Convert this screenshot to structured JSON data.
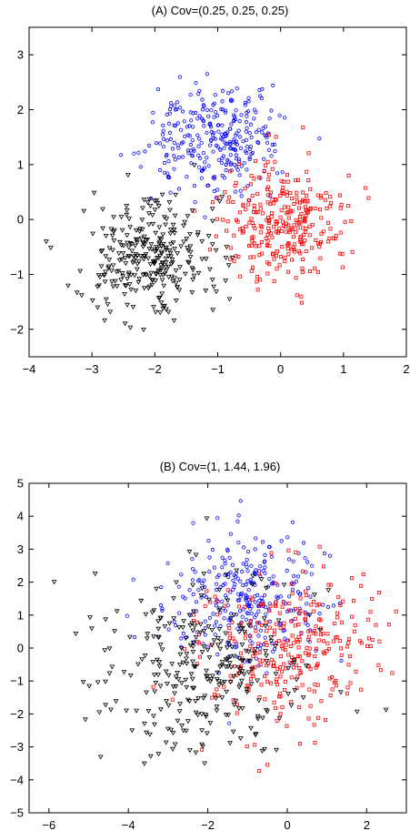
{
  "chart_data": [
    {
      "type": "scatter",
      "title": "(A) Cov=(0.25, 0.25, 0.25)",
      "xlabel": "",
      "ylabel": "",
      "xlim": [
        -4,
        2
      ],
      "ylim": [
        -2.5,
        3.5
      ],
      "xticks": [
        -4,
        -3,
        -2,
        -1,
        0,
        1,
        2
      ],
      "yticks": [
        -2,
        -1,
        0,
        1,
        2,
        3
      ],
      "grid": false,
      "series": [
        {
          "color": "#0000ff",
          "marker": "circle",
          "center": [
            -1.0,
            1.5
          ],
          "std": [
            0.5,
            0.5
          ],
          "count": 300,
          "seed": 101
        },
        {
          "color": "#ff0000",
          "marker": "square",
          "center": [
            0.0,
            0.0
          ],
          "std": [
            0.5,
            0.5
          ],
          "count": 300,
          "seed": 202
        },
        {
          "color": "#000000",
          "marker": "triangle-down",
          "center": [
            -2.0,
            -0.7
          ],
          "std": [
            0.5,
            0.5
          ],
          "count": 300,
          "seed": 303
        }
      ]
    },
    {
      "type": "scatter",
      "title": "(B) Cov=(1, 1.44, 1.96)",
      "xlabel": "",
      "ylabel": "",
      "xlim": [
        -6.5,
        3
      ],
      "ylim": [
        -5,
        5
      ],
      "xticks": [
        -6,
        -4,
        -2,
        0,
        2
      ],
      "yticks": [
        -5,
        -4,
        -3,
        -2,
        -1,
        0,
        1,
        2,
        3,
        4,
        5
      ],
      "grid": false,
      "series": [
        {
          "color": "#0000ff",
          "marker": "circle",
          "center": [
            -1.0,
            1.5
          ],
          "std": [
            1.0,
            1.0
          ],
          "count": 300,
          "seed": 404
        },
        {
          "color": "#ff0000",
          "marker": "square",
          "center": [
            0.0,
            0.0
          ],
          "std": [
            1.2,
            1.2
          ],
          "count": 300,
          "seed": 505
        },
        {
          "color": "#000000",
          "marker": "triangle-down",
          "center": [
            -2.0,
            -0.7
          ],
          "std": [
            1.4,
            1.4
          ],
          "count": 300,
          "seed": 606
        }
      ]
    }
  ]
}
